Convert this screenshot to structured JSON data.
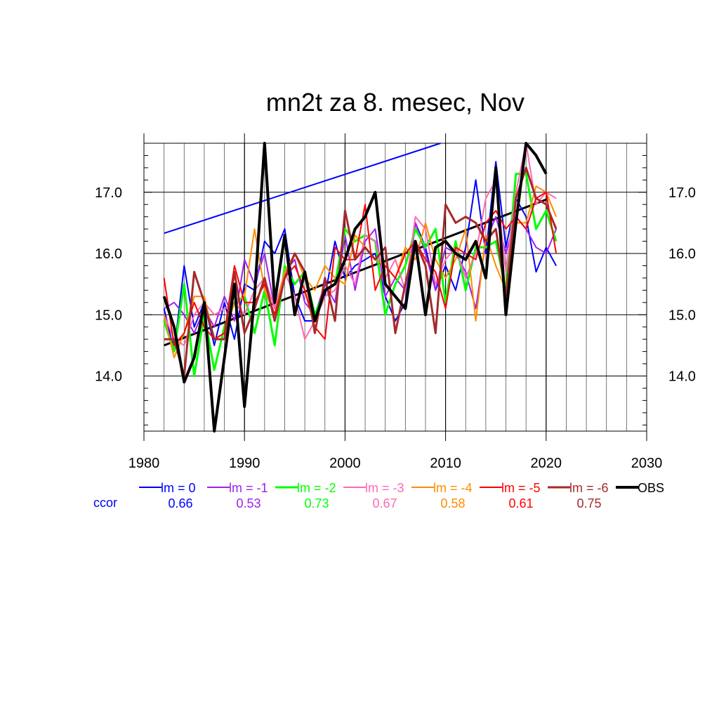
{
  "chart_data": {
    "type": "line",
    "title": "mn2t za 8. mesec, Nov",
    "xlabel": "",
    "ylabel": "",
    "xlim": [
      1980,
      2030
    ],
    "ylim": [
      13.1,
      17.8
    ],
    "x_ticks": [
      "1980",
      "1990",
      "2000",
      "2010",
      "2020",
      "2030"
    ],
    "y_ticks": [
      "14.0",
      "15.0",
      "16.0",
      "17.0"
    ],
    "grid": true,
    "legend_position": "bottom",
    "ccor_label": "ccor",
    "x": [
      1982,
      1983,
      1984,
      1985,
      1986,
      1987,
      1988,
      1989,
      1990,
      1991,
      1992,
      1993,
      1994,
      1995,
      1996,
      1997,
      1998,
      1999,
      2000,
      2001,
      2002,
      2003,
      2004,
      2005,
      2006,
      2007,
      2008,
      2009,
      2010,
      2011,
      2012,
      2013,
      2014,
      2015,
      2016,
      2017,
      2018,
      2019,
      2020,
      2021
    ],
    "series": [
      {
        "name": "lm = 0",
        "ccor": "0.66",
        "color": "#0000ff",
        "width": 2,
        "values": [
          15.1,
          14.4,
          15.8,
          14.8,
          15.2,
          14.5,
          15.2,
          14.6,
          15.5,
          15.4,
          16.2,
          16.0,
          16.4,
          15.3,
          14.9,
          14.9,
          15.3,
          16.2,
          15.6,
          15.8,
          15.9,
          16.0,
          15.3,
          14.9,
          15.2,
          16.5,
          16.1,
          15.4,
          15.8,
          15.4,
          16.1,
          17.2,
          16.0,
          17.5,
          16.1,
          16.9,
          16.6,
          15.7,
          16.1,
          15.8
        ]
      },
      {
        "name": "lm = -1",
        "ccor": "0.53",
        "color": "#a020f0",
        "width": 2,
        "values": [
          15.1,
          15.2,
          15.0,
          14.7,
          15.1,
          14.8,
          15.3,
          14.9,
          15.9,
          15.5,
          16.0,
          15.1,
          15.7,
          15.9,
          15.2,
          15.0,
          15.5,
          15.2,
          16.3,
          15.4,
          16.2,
          16.4,
          15.3,
          15.6,
          15.4,
          16.5,
          16.0,
          15.4,
          16.1,
          16.0,
          15.7,
          15.1,
          16.2,
          16.6,
          16.0,
          16.6,
          16.4,
          16.1,
          16.0,
          16.4
        ]
      },
      {
        "name": "lm = -2",
        "ccor": "0.73",
        "color": "#00ff00",
        "width": 3,
        "values": [
          14.9,
          14.4,
          15.5,
          14.0,
          15.0,
          14.1,
          14.8,
          15.2,
          15.3,
          14.7,
          15.4,
          14.5,
          15.8,
          15.5,
          15.7,
          15.0,
          15.4,
          15.5,
          16.4,
          16.2,
          16.3,
          16.2,
          15.0,
          15.5,
          15.8,
          16.4,
          16.1,
          16.4,
          15.2,
          16.2,
          15.4,
          16.1,
          16.1,
          16.2,
          15.4,
          17.3,
          17.3,
          16.4,
          16.7,
          16.2
        ]
      },
      {
        "name": "lm = -3",
        "ccor": "0.67",
        "color": "#ff69b4",
        "width": 2,
        "values": [
          15.0,
          14.6,
          14.5,
          15.0,
          15.2,
          15.0,
          15.1,
          15.2,
          15.0,
          15.4,
          15.6,
          15.1,
          15.7,
          15.3,
          14.6,
          14.9,
          15.3,
          15.4,
          15.8,
          15.5,
          16.3,
          16.2,
          15.6,
          15.9,
          15.4,
          16.6,
          16.4,
          15.5,
          15.9,
          16.1,
          15.6,
          16.0,
          16.9,
          17.2,
          15.7,
          17.0,
          17.8,
          16.8,
          17.0,
          16.9
        ]
      },
      {
        "name": "lm = -4",
        "ccor": "0.58",
        "color": "#ff8c00",
        "width": 2,
        "values": [
          15.0,
          14.3,
          14.7,
          15.3,
          15.3,
          14.6,
          14.7,
          15.2,
          15.3,
          16.4,
          15.4,
          15.0,
          15.7,
          16.0,
          15.6,
          15.4,
          15.8,
          15.6,
          15.5,
          16.3,
          16.1,
          15.9,
          15.8,
          15.6,
          16.1,
          15.9,
          16.5,
          15.9,
          15.6,
          15.9,
          16.4,
          14.9,
          16.3,
          15.8,
          15.4,
          16.5,
          16.5,
          17.1,
          17.0,
          16.6
        ]
      },
      {
        "name": "lm = -5",
        "ccor": "0.61",
        "color": "#ff0000",
        "width": 2,
        "values": [
          15.6,
          14.5,
          14.7,
          15.2,
          14.8,
          14.6,
          14.7,
          15.8,
          15.2,
          15.2,
          15.5,
          15.0,
          15.6,
          15.8,
          15.4,
          14.8,
          14.6,
          16.1,
          15.9,
          15.9,
          16.8,
          15.4,
          15.8,
          15.6,
          16.0,
          16.2,
          15.9,
          15.7,
          15.1,
          16.1,
          16.0,
          15.9,
          16.5,
          16.7,
          16.4,
          16.6,
          16.4,
          16.9,
          17.0,
          16.0
        ]
      },
      {
        "name": "lm = -6",
        "ccor": "0.75",
        "color": "#a52a2a",
        "width": 3,
        "values": [
          14.6,
          14.6,
          14.0,
          15.7,
          15.2,
          14.6,
          14.6,
          15.7,
          14.7,
          15.1,
          15.6,
          14.9,
          15.6,
          16.0,
          15.7,
          14.7,
          15.6,
          14.9,
          16.7,
          15.9,
          16.1,
          15.9,
          16.1,
          14.7,
          15.5,
          16.2,
          15.8,
          14.7,
          16.8,
          16.5,
          16.6,
          16.5,
          16.2,
          16.4,
          15.3,
          16.9,
          17.4,
          16.9,
          16.8,
          16.4
        ]
      },
      {
        "name": "OBS",
        "ccor": "",
        "color": "#000000",
        "width": 4,
        "values": [
          15.3,
          14.8,
          13.9,
          14.3,
          15.2,
          13.1,
          14.3,
          15.5,
          13.5,
          15.3,
          17.8,
          15.2,
          16.3,
          15.0,
          15.7,
          14.9,
          15.4,
          15.5,
          15.9,
          16.4,
          16.6,
          17.0,
          15.5,
          15.3,
          15.1,
          16.2,
          15.0,
          16.1,
          16.2,
          16.0,
          15.9,
          16.2,
          15.6,
          17.4,
          15.0,
          16.5,
          17.8,
          17.6,
          17.3,
          null
        ]
      }
    ],
    "trend_lines": [
      {
        "color": "#0000ff",
        "width": 2,
        "x": [
          1982,
          2009.5
        ],
        "y": [
          16.33,
          17.8
        ]
      },
      {
        "color": "#000000",
        "width": 3,
        "x": [
          1982,
          2020
        ],
        "y": [
          14.5,
          16.88
        ]
      }
    ]
  }
}
